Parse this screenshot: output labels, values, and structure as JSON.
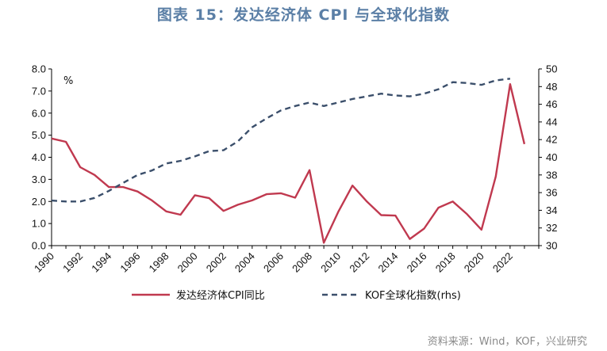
{
  "title": "图表 15：发达经济体 CPI 与全球化指数",
  "source": "资料来源：Wind，KOF，兴业研究",
  "chart_data": {
    "type": "line",
    "ylabel": "%",
    "ylim": [
      0,
      8
    ],
    "y2lim": [
      30,
      50
    ],
    "xlim": [
      1990,
      2024
    ],
    "yticks": [
      "0.0",
      "1.0",
      "2.0",
      "3.0",
      "4.0",
      "5.0",
      "6.0",
      "7.0",
      "8.0"
    ],
    "y2ticks": [
      "30",
      "32",
      "34",
      "36",
      "38",
      "40",
      "42",
      "44",
      "46",
      "48",
      "50"
    ],
    "xticks": [
      "1990",
      "1992",
      "1994",
      "1996",
      "1998",
      "2000",
      "2002",
      "2004",
      "2006",
      "2008",
      "2010",
      "2012",
      "2014",
      "2016",
      "2018",
      "2020",
      "2022"
    ],
    "series": [
      {
        "name": "发达经济体CPI同比",
        "axis": "left",
        "color": "#c0394f",
        "dash": false,
        "x": [
          1990,
          1991,
          1992,
          1993,
          1994,
          1995,
          1996,
          1997,
          1998,
          1999,
          2000,
          2001,
          2002,
          2003,
          2004,
          2005,
          2006,
          2007,
          2008,
          2009,
          2010,
          2011,
          2012,
          2013,
          2014,
          2015,
          2016,
          2017,
          2018,
          2019,
          2020,
          2021,
          2022,
          2023
        ],
        "values": [
          4.85,
          4.7,
          3.55,
          3.2,
          2.65,
          2.65,
          2.45,
          2.05,
          1.55,
          1.4,
          2.28,
          2.15,
          1.57,
          1.85,
          2.05,
          2.33,
          2.37,
          2.17,
          3.42,
          0.13,
          1.52,
          2.72,
          2.0,
          1.38,
          1.36,
          0.3,
          0.77,
          1.72,
          2.0,
          1.42,
          0.72,
          3.13,
          7.31,
          4.6
        ]
      },
      {
        "name": "KOF全球化指数(rhs)",
        "axis": "right",
        "color": "#3b4f6b",
        "dash": true,
        "x": [
          1990,
          1991,
          1992,
          1993,
          1994,
          1995,
          1996,
          1997,
          1998,
          1999,
          2000,
          2001,
          2002,
          2003,
          2004,
          2005,
          2006,
          2007,
          2008,
          2009,
          2010,
          2011,
          2012,
          2013,
          2014,
          2015,
          2016,
          2017,
          2018,
          2019,
          2020,
          2021,
          2022
        ],
        "values": [
          35.1,
          35.0,
          35.0,
          35.4,
          36.2,
          37.1,
          38.0,
          38.5,
          39.3,
          39.6,
          40.1,
          40.7,
          40.8,
          41.8,
          43.4,
          44.4,
          45.3,
          45.8,
          46.2,
          45.8,
          46.2,
          46.6,
          46.9,
          47.2,
          47.0,
          46.9,
          47.2,
          47.7,
          48.5,
          48.4,
          48.2,
          48.7,
          48.9
        ]
      }
    ]
  }
}
